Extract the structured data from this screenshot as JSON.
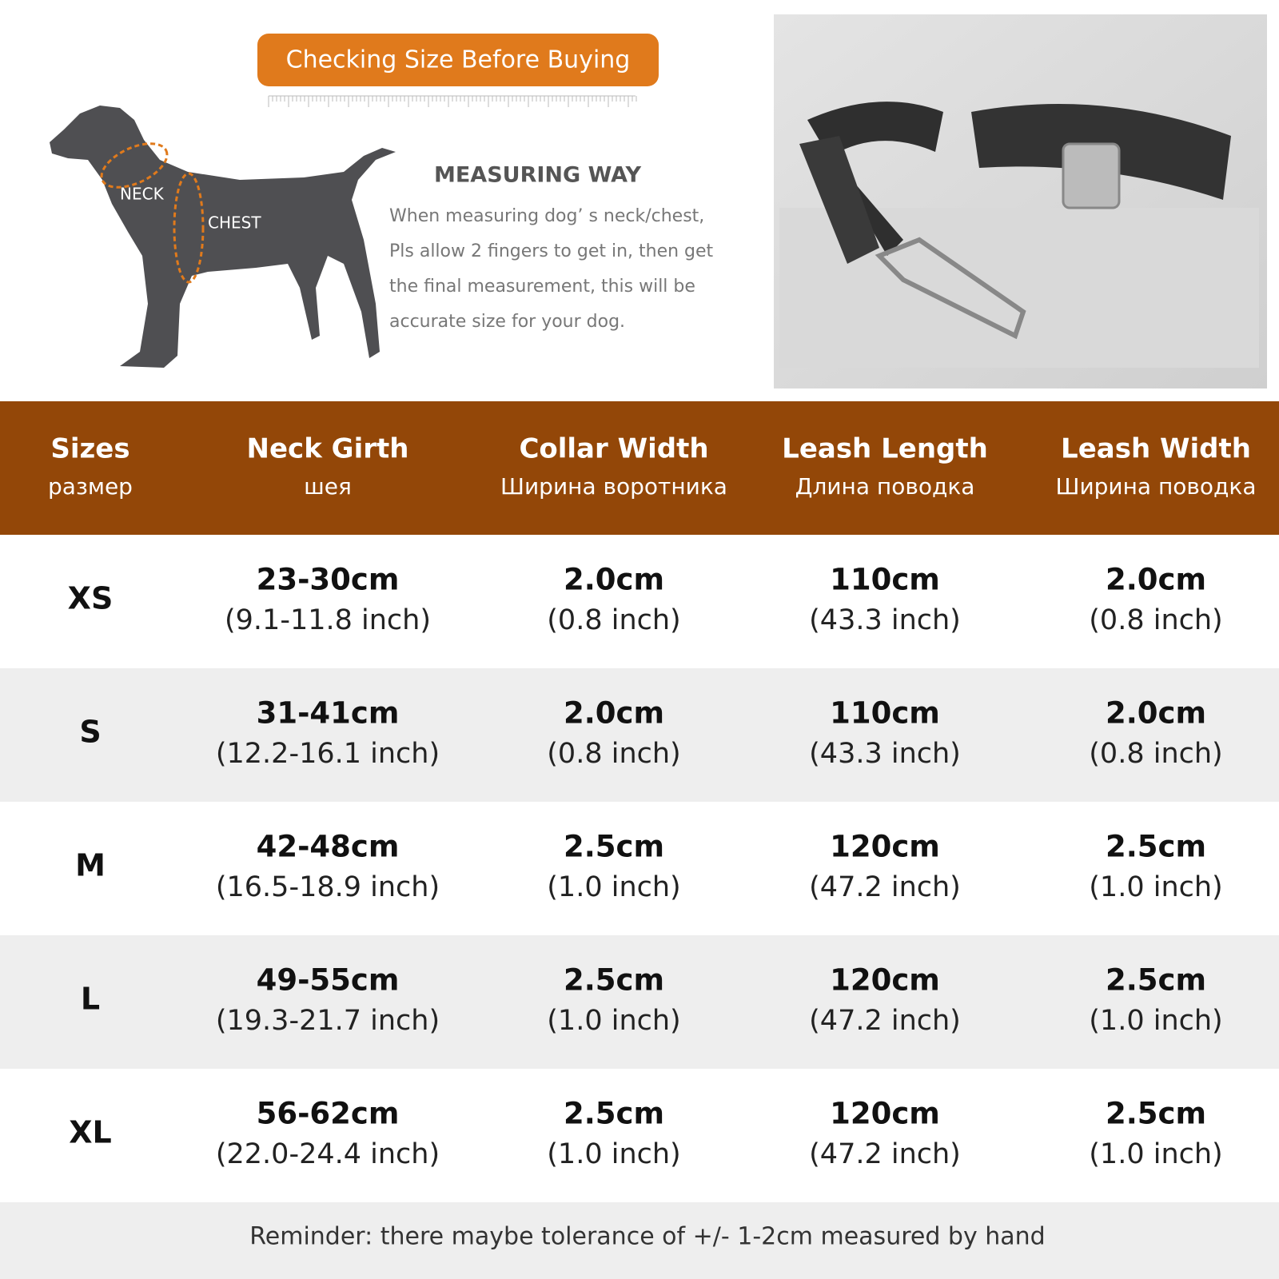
{
  "header": {
    "title": "Checking Size Before Buying"
  },
  "measuring": {
    "title": "MEASURING WAY",
    "lines": [
      "When measuring dog’ s neck/chest,",
      "Pls allow 2 fingers to get in, then get",
      "the final measurement, this will be",
      "accurate size for your dog."
    ]
  },
  "dog_labels": {
    "neck": "NECK",
    "chest": "CHEST"
  },
  "table": {
    "headers": [
      {
        "en": "Sizes",
        "ru": "размер"
      },
      {
        "en": "Neck Girth",
        "ru": "шея"
      },
      {
        "en": "Collar Width",
        "ru": "Ширина воротника"
      },
      {
        "en": "Leash Length",
        "ru": "Длина поводка"
      },
      {
        "en": "Leash Width",
        "ru": "Ширина поводка"
      }
    ],
    "rows": [
      {
        "size": "XS",
        "cells": [
          {
            "main": "23-30cm",
            "sub": "(9.1-11.8 inch)"
          },
          {
            "main": "2.0cm",
            "sub": "(0.8 inch)"
          },
          {
            "main": "110cm",
            "sub": "(43.3 inch)"
          },
          {
            "main": "2.0cm",
            "sub": "(0.8 inch)"
          }
        ]
      },
      {
        "size": "S",
        "cells": [
          {
            "main": "31-41cm",
            "sub": "(12.2-16.1 inch)"
          },
          {
            "main": "2.0cm",
            "sub": "(0.8 inch)"
          },
          {
            "main": "110cm",
            "sub": "(43.3 inch)"
          },
          {
            "main": "2.0cm",
            "sub": "(0.8 inch)"
          }
        ]
      },
      {
        "size": "M",
        "cells": [
          {
            "main": "42-48cm",
            "sub": "(16.5-18.9 inch)"
          },
          {
            "main": "2.5cm",
            "sub": "(1.0 inch)"
          },
          {
            "main": "120cm",
            "sub": "(47.2 inch)"
          },
          {
            "main": "2.5cm",
            "sub": "(1.0 inch)"
          }
        ]
      },
      {
        "size": "L",
        "cells": [
          {
            "main": "49-55cm",
            "sub": "(19.3-21.7 inch)"
          },
          {
            "main": "2.5cm",
            "sub": "(1.0 inch)"
          },
          {
            "main": "120cm",
            "sub": "(47.2 inch)"
          },
          {
            "main": "2.5cm",
            "sub": "(1.0 inch)"
          }
        ]
      },
      {
        "size": "XL",
        "cells": [
          {
            "main": "56-62cm",
            "sub": "(22.0-24.4 inch)"
          },
          {
            "main": "2.5cm",
            "sub": "(1.0 inch)"
          },
          {
            "main": "120cm",
            "sub": "(47.2 inch)"
          },
          {
            "main": "2.5cm",
            "sub": "(1.0 inch)"
          }
        ]
      }
    ]
  },
  "reminder": "Reminder: there maybe tolerance of +/- 1-2cm measured by hand"
}
